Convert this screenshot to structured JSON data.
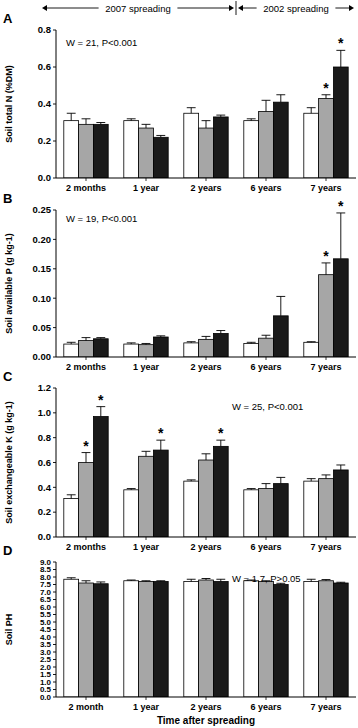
{
  "chart_data": [
    {
      "type": "bar",
      "panel": "A",
      "y_label": "Soil total N (%DM)",
      "categories": [
        "2 months",
        "1 year",
        "2 years",
        "6 years",
        "7 years"
      ],
      "series": [
        {
          "color": "#ffffff",
          "values": [
            0.31,
            0.31,
            0.35,
            0.31,
            0.35
          ],
          "errors": [
            0.04,
            0.01,
            0.03,
            0.01,
            0.03
          ]
        },
        {
          "color": "#a6a6a6",
          "values": [
            0.29,
            0.27,
            0.27,
            0.36,
            0.43
          ],
          "errors": [
            0.03,
            0.02,
            0.04,
            0.06,
            0.02
          ]
        },
        {
          "color": "#1a1a1a",
          "values": [
            0.29,
            0.22,
            0.33,
            0.41,
            0.6
          ],
          "errors": [
            0.01,
            0.01,
            0.01,
            0.04,
            0.09
          ]
        }
      ],
      "ylim": [
        0,
        0.8
      ],
      "yticks": [
        {
          "value": 0,
          "label": "0.0"
        },
        0.2,
        0.4,
        0.6,
        0.8
      ],
      "grid": false,
      "annotations": [
        "W = 21, P<0.001"
      ],
      "significance": [
        {
          "series": 1,
          "category": 4,
          "label": "*"
        },
        {
          "series": 2,
          "category": 4,
          "label": "*"
        }
      ],
      "periods": [
        {
          "text": "2007 spreading",
          "from": 0,
          "to": 2
        },
        {
          "text": "2002 spreading",
          "from": 3,
          "to": 4
        }
      ]
    },
    {
      "type": "bar",
      "panel": "B",
      "y_label": "Soil available P (g kg-1)",
      "categories": [
        "2 months",
        "1 year",
        "2 years",
        "6 years",
        "7 years"
      ],
      "series": [
        {
          "color": "#ffffff",
          "values": [
            0.022,
            0.022,
            0.024,
            0.023,
            0.025
          ],
          "errors": [
            0.003,
            0.002,
            0.002,
            0.002,
            0.001
          ]
        },
        {
          "color": "#a6a6a6",
          "values": [
            0.028,
            0.021,
            0.03,
            0.032,
            0.14
          ],
          "errors": [
            0.005,
            0.002,
            0.005,
            0.005,
            0.02
          ]
        },
        {
          "color": "#1a1a1a",
          "values": [
            0.031,
            0.034,
            0.04,
            0.07,
            0.167
          ],
          "errors": [
            0.002,
            0.002,
            0.005,
            0.033,
            0.078
          ]
        }
      ],
      "ylim": [
        0,
        0.25
      ],
      "yticks": [
        {
          "value": 0,
          "label": "0.00"
        },
        0.05,
        {
          "value": 0.1,
          "label": "0.10"
        },
        0.15,
        {
          "value": 0.2,
          "label": "0.20"
        },
        0.25
      ],
      "grid": false,
      "annotations": [
        "W = 19, P<0.001"
      ],
      "significance": [
        {
          "series": 1,
          "category": 4,
          "label": "*"
        },
        {
          "series": 2,
          "category": 4,
          "label": "*"
        }
      ]
    },
    {
      "type": "bar",
      "panel": "C",
      "y_label": "Soil exchangeable K (g kg-1)",
      "categories": [
        "2 months",
        "1 year",
        "2 years",
        "6 years",
        "7 years"
      ],
      "series": [
        {
          "color": "#ffffff",
          "values": [
            0.31,
            0.38,
            0.45,
            0.38,
            0.45
          ],
          "errors": [
            0.03,
            0.01,
            0.01,
            0.01,
            0.02
          ]
        },
        {
          "color": "#a6a6a6",
          "values": [
            0.6,
            0.65,
            0.62,
            0.39,
            0.47
          ],
          "errors": [
            0.08,
            0.04,
            0.05,
            0.04,
            0.03
          ]
        },
        {
          "color": "#1a1a1a",
          "values": [
            0.97,
            0.7,
            0.73,
            0.43,
            0.54
          ],
          "errors": [
            0.08,
            0.08,
            0.05,
            0.05,
            0.04
          ]
        }
      ],
      "ylim": [
        0,
        1.2
      ],
      "yticks": [
        {
          "value": 0,
          "label": "0.0"
        },
        0.2,
        0.4,
        0.6,
        0.8,
        {
          "value": 1,
          "label": "1.0"
        },
        1.2
      ],
      "grid": false,
      "annotations": [
        "W = 25, P<0.001"
      ],
      "significance": [
        {
          "series": 1,
          "category": 0,
          "label": "*"
        },
        {
          "series": 2,
          "category": 0,
          "label": "*"
        },
        {
          "series": 2,
          "category": 1,
          "label": "*"
        },
        {
          "series": 2,
          "category": 2,
          "label": "*"
        }
      ]
    },
    {
      "type": "bar",
      "panel": "D",
      "y_label": "Soil PH",
      "x_label": "Time after spreading",
      "categories": [
        "2 month",
        "1 year",
        "2 years",
        "6 years",
        "7 years"
      ],
      "series": [
        {
          "color": "#ffffff",
          "values": [
            7.85,
            7.75,
            7.7,
            7.75,
            7.7
          ],
          "errors": [
            0.1,
            0.05,
            0.15,
            0.05,
            0.15
          ]
        },
        {
          "color": "#a6a6a6",
          "values": [
            7.6,
            7.7,
            7.8,
            7.7,
            7.75
          ],
          "errors": [
            0.15,
            0.05,
            0.1,
            0.05,
            0.08
          ]
        },
        {
          "color": "#1a1a1a",
          "values": [
            7.55,
            7.7,
            7.7,
            7.5,
            7.6
          ],
          "errors": [
            0.12,
            0.05,
            0.15,
            0.08,
            0.05
          ]
        }
      ],
      "ylim": [
        0,
        9
      ],
      "yticks": [
        {
          "value": 0,
          "label": "0.0"
        },
        0.5,
        {
          "value": 1,
          "label": "1.0"
        },
        1.5,
        {
          "value": 2,
          "label": "2.0"
        },
        2.5,
        {
          "value": 3,
          "label": "3.0"
        },
        3.5,
        {
          "value": 4,
          "label": "4.0"
        },
        4.5,
        {
          "value": 5,
          "label": "5.0"
        },
        5.5,
        {
          "value": 6,
          "label": "6.0"
        },
        6.5,
        {
          "value": 7,
          "label": "7.0"
        },
        7.5,
        {
          "value": 8,
          "label": "8.0"
        },
        8.5,
        {
          "value": 9,
          "label": "9.0"
        }
      ],
      "grid": false,
      "annotations": [
        "W = 1.7, P>0.05"
      ]
    }
  ]
}
